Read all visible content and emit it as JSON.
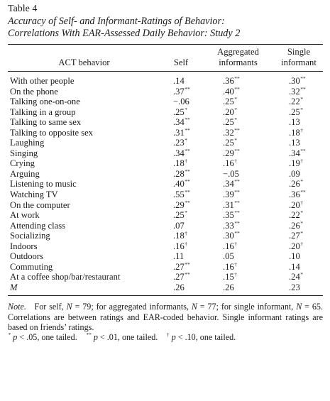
{
  "table": {
    "number": "Table 4",
    "title_line1": "Accuracy of Self- and Informant-Ratings of Behavior:",
    "title_line2": "Correlations With EAR-Assessed Daily Behavior: Study 2",
    "headers": {
      "label": "ACT behavior",
      "self": "Self",
      "aggregated_line1": "Aggregated",
      "aggregated_line2": "informants",
      "single_line1": "Single",
      "single_line2": "informant"
    },
    "rows": [
      {
        "label": "With other people",
        "self": ".14",
        "self_sig": "",
        "agg": ".36",
        "agg_sig": "**",
        "single": ".30",
        "single_sig": "**"
      },
      {
        "label": "On the phone",
        "self": ".37",
        "self_sig": "**",
        "agg": ".40",
        "agg_sig": "**",
        "single": ".32",
        "single_sig": "**"
      },
      {
        "label": "Talking one-on-one",
        "self": "−.06",
        "self_sig": "",
        "agg": ".25",
        "agg_sig": "*",
        "single": ".22",
        "single_sig": "*"
      },
      {
        "label": "Talking in a group",
        "self": ".25",
        "self_sig": "*",
        "agg": ".20",
        "agg_sig": "*",
        "single": ".25",
        "single_sig": "*"
      },
      {
        "label": "Talking to same sex",
        "self": ".34",
        "self_sig": "**",
        "agg": ".25",
        "agg_sig": "*",
        "single": ".13",
        "single_sig": ""
      },
      {
        "label": "Talking to opposite sex",
        "self": ".31",
        "self_sig": "**",
        "agg": ".32",
        "agg_sig": "**",
        "single": ".18",
        "single_sig": "†"
      },
      {
        "label": "Laughing",
        "self": ".23",
        "self_sig": "*",
        "agg": ".25",
        "agg_sig": "*",
        "single": ".13",
        "single_sig": ""
      },
      {
        "label": "Singing",
        "self": ".34",
        "self_sig": "**",
        "agg": ".29",
        "agg_sig": "**",
        "single": ".34",
        "single_sig": "**"
      },
      {
        "label": "Crying",
        "self": ".18",
        "self_sig": "†",
        "agg": ".16",
        "agg_sig": "†",
        "single": ".19",
        "single_sig": "†"
      },
      {
        "label": "Arguing",
        "self": ".28",
        "self_sig": "**",
        "agg": "−.05",
        "agg_sig": "",
        "single": ".09",
        "single_sig": ""
      },
      {
        "label": "Listening to music",
        "self": ".40",
        "self_sig": "**",
        "agg": ".34",
        "agg_sig": "**",
        "single": ".26",
        "single_sig": "*"
      },
      {
        "label": "Watching TV",
        "self": ".55",
        "self_sig": "**",
        "agg": ".39",
        "agg_sig": "**",
        "single": ".36",
        "single_sig": "**"
      },
      {
        "label": "On the computer",
        "self": ".29",
        "self_sig": "**",
        "agg": ".31",
        "agg_sig": "**",
        "single": ".20",
        "single_sig": "†"
      },
      {
        "label": "At work",
        "self": ".25",
        "self_sig": "*",
        "agg": ".35",
        "agg_sig": "**",
        "single": ".22",
        "single_sig": "*"
      },
      {
        "label": "Attending class",
        "self": ".07",
        "self_sig": "",
        "agg": ".33",
        "agg_sig": "**",
        "single": ".26",
        "single_sig": "*"
      },
      {
        "label": "Socializing",
        "self": ".18",
        "self_sig": "†",
        "agg": ".30",
        "agg_sig": "**",
        "single": ".27",
        "single_sig": "*"
      },
      {
        "label": "Indoors",
        "self": ".16",
        "self_sig": "†",
        "agg": ".16",
        "agg_sig": "†",
        "single": ".20",
        "single_sig": "†"
      },
      {
        "label": "Outdoors",
        "self": ".11",
        "self_sig": "",
        "agg": ".05",
        "agg_sig": "",
        "single": ".10",
        "single_sig": ""
      },
      {
        "label": "Commuting",
        "self": ".27",
        "self_sig": "**",
        "agg": ".16",
        "agg_sig": "†",
        "single": ".14",
        "single_sig": ""
      },
      {
        "label": "At a coffee shop/bar/restaurant",
        "self": ".27",
        "self_sig": "**",
        "agg": ".15",
        "agg_sig": "†",
        "single": ".24",
        "single_sig": "*"
      }
    ],
    "mean_row": {
      "label": "M",
      "self": ".26",
      "agg": ".26",
      "single": ".23"
    },
    "note": {
      "label": "Note.",
      "sentence1_a": "For self, ",
      "n_symbol": "N",
      "sentence1_b": " = 79; for aggregated informants, ",
      "sentence1_c": " = 77; for single informant, ",
      "sentence1_d": " = 65. Correlations are between ratings and EAR-coded behavior. Single informant ratings are based on friends’ ratings.",
      "p_symbol": "p",
      "sig1_mark": "*",
      "sig1_text": " < .05, one tailed.",
      "sig2_mark": "**",
      "sig2_text": " < .01, one tailed.",
      "sig3_mark": "†",
      "sig3_text": " < .10, one tailed."
    }
  }
}
